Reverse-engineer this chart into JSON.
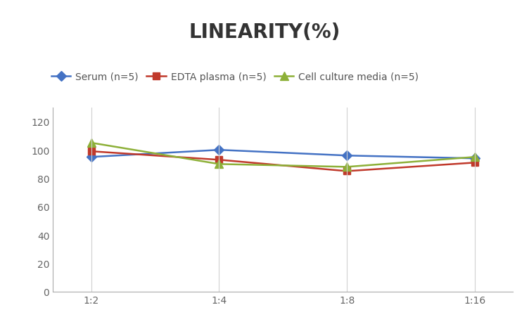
{
  "title": "LINEARITY(%)",
  "x_labels": [
    "1:2",
    "1:4",
    "1:8",
    "1:16"
  ],
  "x_positions": [
    0,
    1,
    2,
    3
  ],
  "series": [
    {
      "label": "Serum (n=5)",
      "color": "#4472C4",
      "marker": "D",
      "markersize": 7,
      "values": [
        95,
        100,
        96,
        94
      ]
    },
    {
      "label": "EDTA plasma (n=5)",
      "color": "#C0392B",
      "marker": "s",
      "markersize": 7,
      "values": [
        99,
        93,
        85,
        91
      ]
    },
    {
      "label": "Cell culture media (n=5)",
      "color": "#8DB038",
      "marker": "^",
      "markersize": 8,
      "values": [
        105,
        90,
        88,
        95
      ]
    }
  ],
  "ylim": [
    0,
    130
  ],
  "yticks": [
    0,
    20,
    40,
    60,
    80,
    100,
    120
  ],
  "title_fontsize": 20,
  "legend_fontsize": 10,
  "tick_fontsize": 10,
  "background_color": "#ffffff",
  "grid_color": "#d0d0d0",
  "title_fontweight": "bold",
  "title_color": "#333333"
}
